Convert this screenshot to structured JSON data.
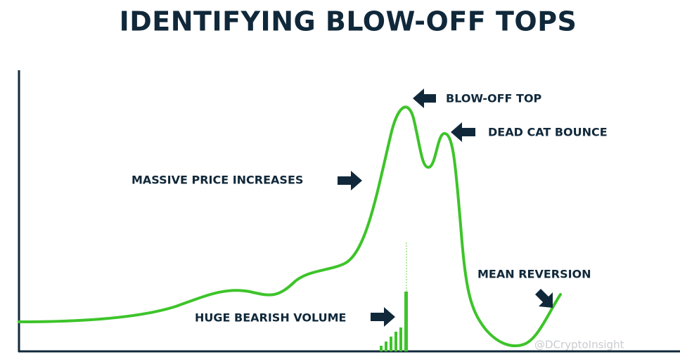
{
  "title": "IDENTIFYING BLOW-OFF TOPS",
  "annotations": {
    "blow_off_top": "BLOW-OFF TOP",
    "dead_cat_bounce": "DEAD CAT BOUNCE",
    "massive_price_increases": "MASSIVE PRICE INCREASES",
    "huge_bearish_volume": "HUGE BEARISH VOLUME",
    "mean_reversion": "MEAN REVERSION"
  },
  "watermark": "@DCryptoInsight"
}
